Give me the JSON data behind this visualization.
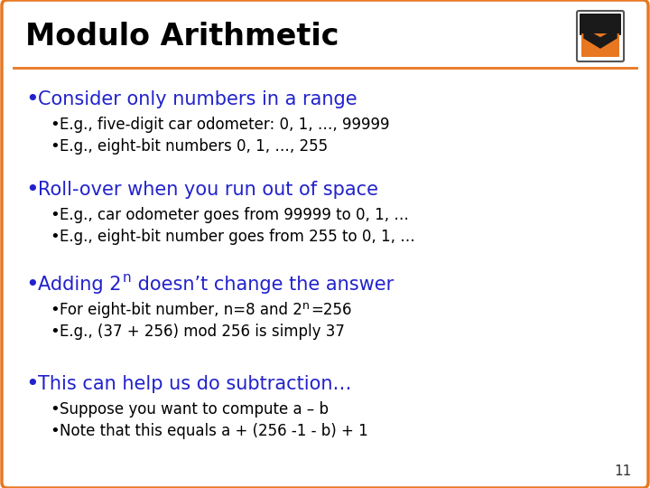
{
  "title": "Modulo Arithmetic",
  "title_color": "#000000",
  "title_fontsize": 24,
  "background_color": "#ffffff",
  "border_color": "#E87722",
  "header_line_color": "#E87722",
  "slide_number": "11",
  "bullet_color": "#2222CC",
  "subbullet_color": "#000000",
  "bullet_fontsize": 15,
  "subbullet_fontsize": 12,
  "bullets": [
    {
      "text": "Consider only numbers in a range",
      "color": "#2222CC",
      "subbullets": [
        "E.g., five-digit car odometer: 0, 1, …, 99999",
        "E.g., eight-bit numbers 0, 1, …, 255"
      ]
    },
    {
      "text": "Roll-over when you run out of space",
      "color": "#2222CC",
      "subbullets": [
        "E.g., car odometer goes from 99999 to 0, 1, …",
        "E.g., eight-bit number goes from 255 to 0, 1, …"
      ]
    },
    {
      "text_before_sup": "Adding 2",
      "text_sup": "n",
      "text_after_sup": " doesn’t change the answer",
      "color": "#2222CC",
      "subbullets": [
        {
          "before": "For eight-bit number, n=8 and 2",
          "sup": "n",
          "after": "=256"
        },
        {
          "plain": "E.g., (37 + 256) mod 256 is simply 37"
        }
      ]
    },
    {
      "text": "This can help us do subtraction…",
      "color": "#2222CC",
      "subbullets": [
        {
          "plain": "Suppose you want to compute a – b"
        },
        {
          "plain": "Note that this equals a + (256 -1 - b) + 1"
        }
      ]
    }
  ]
}
